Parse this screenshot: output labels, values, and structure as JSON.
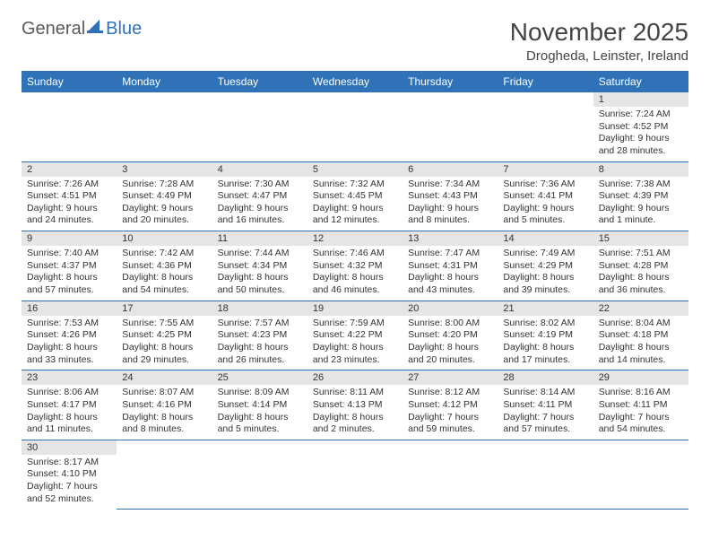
{
  "logo": {
    "text_general": "General",
    "text_blue": "Blue"
  },
  "title": "November 2025",
  "location": "Drogheda, Leinster, Ireland",
  "colors": {
    "header_bg": "#2f72b8",
    "header_text": "#ffffff",
    "daynum_bg": "#e5e5e5",
    "cell_border": "#2f72b8",
    "body_text": "#333333"
  },
  "weekdays": [
    "Sunday",
    "Monday",
    "Tuesday",
    "Wednesday",
    "Thursday",
    "Friday",
    "Saturday"
  ],
  "first_weekday_index": 6,
  "days": [
    {
      "n": 1,
      "sunrise": "7:24 AM",
      "sunset": "4:52 PM",
      "daylight": "9 hours and 28 minutes."
    },
    {
      "n": 2,
      "sunrise": "7:26 AM",
      "sunset": "4:51 PM",
      "daylight": "9 hours and 24 minutes."
    },
    {
      "n": 3,
      "sunrise": "7:28 AM",
      "sunset": "4:49 PM",
      "daylight": "9 hours and 20 minutes."
    },
    {
      "n": 4,
      "sunrise": "7:30 AM",
      "sunset": "4:47 PM",
      "daylight": "9 hours and 16 minutes."
    },
    {
      "n": 5,
      "sunrise": "7:32 AM",
      "sunset": "4:45 PM",
      "daylight": "9 hours and 12 minutes."
    },
    {
      "n": 6,
      "sunrise": "7:34 AM",
      "sunset": "4:43 PM",
      "daylight": "9 hours and 8 minutes."
    },
    {
      "n": 7,
      "sunrise": "7:36 AM",
      "sunset": "4:41 PM",
      "daylight": "9 hours and 5 minutes."
    },
    {
      "n": 8,
      "sunrise": "7:38 AM",
      "sunset": "4:39 PM",
      "daylight": "9 hours and 1 minute."
    },
    {
      "n": 9,
      "sunrise": "7:40 AM",
      "sunset": "4:37 PM",
      "daylight": "8 hours and 57 minutes."
    },
    {
      "n": 10,
      "sunrise": "7:42 AM",
      "sunset": "4:36 PM",
      "daylight": "8 hours and 54 minutes."
    },
    {
      "n": 11,
      "sunrise": "7:44 AM",
      "sunset": "4:34 PM",
      "daylight": "8 hours and 50 minutes."
    },
    {
      "n": 12,
      "sunrise": "7:46 AM",
      "sunset": "4:32 PM",
      "daylight": "8 hours and 46 minutes."
    },
    {
      "n": 13,
      "sunrise": "7:47 AM",
      "sunset": "4:31 PM",
      "daylight": "8 hours and 43 minutes."
    },
    {
      "n": 14,
      "sunrise": "7:49 AM",
      "sunset": "4:29 PM",
      "daylight": "8 hours and 39 minutes."
    },
    {
      "n": 15,
      "sunrise": "7:51 AM",
      "sunset": "4:28 PM",
      "daylight": "8 hours and 36 minutes."
    },
    {
      "n": 16,
      "sunrise": "7:53 AM",
      "sunset": "4:26 PM",
      "daylight": "8 hours and 33 minutes."
    },
    {
      "n": 17,
      "sunrise": "7:55 AM",
      "sunset": "4:25 PM",
      "daylight": "8 hours and 29 minutes."
    },
    {
      "n": 18,
      "sunrise": "7:57 AM",
      "sunset": "4:23 PM",
      "daylight": "8 hours and 26 minutes."
    },
    {
      "n": 19,
      "sunrise": "7:59 AM",
      "sunset": "4:22 PM",
      "daylight": "8 hours and 23 minutes."
    },
    {
      "n": 20,
      "sunrise": "8:00 AM",
      "sunset": "4:20 PM",
      "daylight": "8 hours and 20 minutes."
    },
    {
      "n": 21,
      "sunrise": "8:02 AM",
      "sunset": "4:19 PM",
      "daylight": "8 hours and 17 minutes."
    },
    {
      "n": 22,
      "sunrise": "8:04 AM",
      "sunset": "4:18 PM",
      "daylight": "8 hours and 14 minutes."
    },
    {
      "n": 23,
      "sunrise": "8:06 AM",
      "sunset": "4:17 PM",
      "daylight": "8 hours and 11 minutes."
    },
    {
      "n": 24,
      "sunrise": "8:07 AM",
      "sunset": "4:16 PM",
      "daylight": "8 hours and 8 minutes."
    },
    {
      "n": 25,
      "sunrise": "8:09 AM",
      "sunset": "4:14 PM",
      "daylight": "8 hours and 5 minutes."
    },
    {
      "n": 26,
      "sunrise": "8:11 AM",
      "sunset": "4:13 PM",
      "daylight": "8 hours and 2 minutes."
    },
    {
      "n": 27,
      "sunrise": "8:12 AM",
      "sunset": "4:12 PM",
      "daylight": "7 hours and 59 minutes."
    },
    {
      "n": 28,
      "sunrise": "8:14 AM",
      "sunset": "4:11 PM",
      "daylight": "7 hours and 57 minutes."
    },
    {
      "n": 29,
      "sunrise": "8:16 AM",
      "sunset": "4:11 PM",
      "daylight": "7 hours and 54 minutes."
    },
    {
      "n": 30,
      "sunrise": "8:17 AM",
      "sunset": "4:10 PM",
      "daylight": "7 hours and 52 minutes."
    }
  ],
  "labels": {
    "sunrise": "Sunrise: ",
    "sunset": "Sunset: ",
    "daylight": "Daylight: "
  }
}
